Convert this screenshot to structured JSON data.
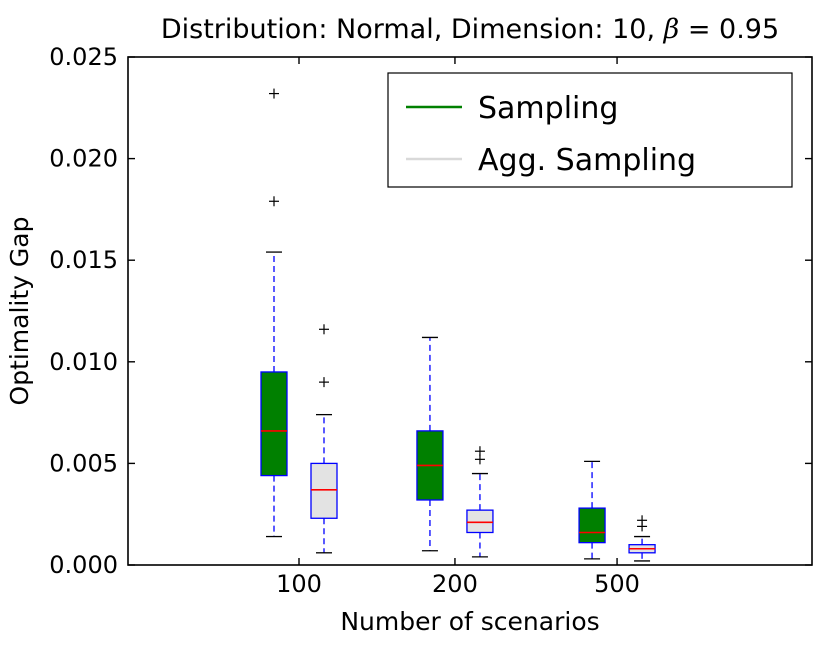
{
  "chart_data": {
    "type": "boxplot",
    "title": "Distribution: Normal, Dimension: 10, β = 0.95",
    "title_parts": {
      "prefix": "Distribution: Normal, Dimension: 10, ",
      "beta": "β",
      "suffix": " = 0.95"
    },
    "xlabel": "Number of scenarios",
    "ylabel": "Optimality Gap",
    "ylim": [
      0,
      0.025
    ],
    "yticks": [
      {
        "v": 0.0,
        "label": "0.000"
      },
      {
        "v": 0.005,
        "label": "0.005"
      },
      {
        "v": 0.01,
        "label": "0.010"
      },
      {
        "v": 0.015,
        "label": "0.015"
      },
      {
        "v": 0.02,
        "label": "0.020"
      },
      {
        "v": 0.025,
        "label": "0.025"
      }
    ],
    "categories": [
      "100",
      "200",
      "500"
    ],
    "legend": {
      "position": "upper right",
      "entries": [
        {
          "label": "Sampling",
          "color": "#008000"
        },
        {
          "label": "Agg. Sampling",
          "color": "#d9d9d9"
        }
      ]
    },
    "style": {
      "whisker_color": "#0000ff",
      "box_edge_color": "#0000ff",
      "median_color": "#ff0000",
      "cap_color": "#000000",
      "flier_color": "#000000",
      "axis_color": "#000000",
      "background": "#ffffff"
    },
    "series": [
      {
        "name": "Sampling",
        "fill": "#008000",
        "boxes": [
          {
            "whisker_low": 0.0014,
            "q1": 0.0044,
            "median": 0.0066,
            "q3": 0.0095,
            "whisker_high": 0.0154,
            "outliers": [
              0.0179,
              0.0232
            ]
          },
          {
            "whisker_low": 0.0007,
            "q1": 0.0032,
            "median": 0.0049,
            "q3": 0.0066,
            "whisker_high": 0.0112,
            "outliers": []
          },
          {
            "whisker_low": 0.0003,
            "q1": 0.0011,
            "median": 0.0016,
            "q3": 0.0028,
            "whisker_high": 0.0051,
            "outliers": []
          }
        ]
      },
      {
        "name": "Agg. Sampling",
        "fill": "#e3e3e3",
        "boxes": [
          {
            "whisker_low": 0.0006,
            "q1": 0.0023,
            "median": 0.0037,
            "q3": 0.005,
            "whisker_high": 0.0074,
            "outliers": [
              0.009,
              0.0116
            ]
          },
          {
            "whisker_low": 0.0004,
            "q1": 0.0016,
            "median": 0.0021,
            "q3": 0.0027,
            "whisker_high": 0.0045,
            "outliers": [
              0.0052,
              0.0056
            ]
          },
          {
            "whisker_low": 0.0002,
            "q1": 0.0006,
            "median": 0.0008,
            "q3": 0.001,
            "whisker_high": 0.0014,
            "outliers": [
              0.0019,
              0.0022
            ]
          }
        ]
      }
    ]
  }
}
